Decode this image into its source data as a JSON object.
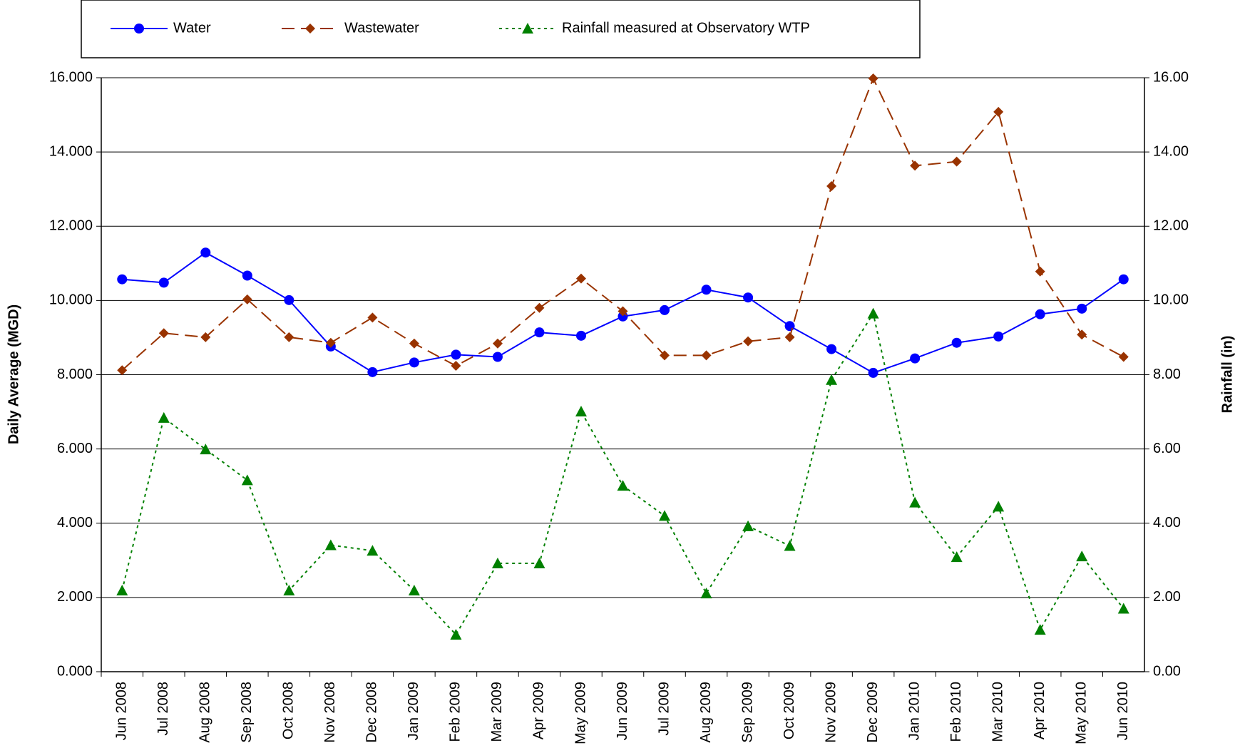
{
  "chart_data": {
    "type": "line",
    "y_label": "Daily Average (MGD)",
    "y2_label": "Rainfall (in)",
    "categories": [
      "Jun 2008",
      "Jul 2008",
      "Aug 2008",
      "Sep 2008",
      "Oct 2008",
      "Nov 2008",
      "Dec 2008",
      "Jan 2009",
      "Feb 2009",
      "Mar 2009",
      "Apr 2009",
      "May 2009",
      "Jun 2009",
      "Jul 2009",
      "Aug 2009",
      "Sep 2009",
      "Oct 2009",
      "Nov 2009",
      "Dec 2009",
      "Jan 2010",
      "Feb 2010",
      "Mar 2010",
      "Apr 2010",
      "May 2010",
      "Jun 2010"
    ],
    "series": [
      {
        "name": "Water",
        "color": "#0000ff",
        "dash": "solid",
        "marker": "circle",
        "values": [
          10.57,
          10.48,
          11.29,
          10.67,
          10.01,
          8.76,
          8.07,
          8.33,
          8.54,
          8.48,
          9.14,
          9.05,
          9.57,
          9.74,
          10.29,
          10.08,
          9.31,
          8.69,
          8.05,
          8.44,
          8.86,
          9.03,
          9.63,
          9.78,
          10.57
        ]
      },
      {
        "name": "Wastewater",
        "color": "#993300",
        "dash": "dashed",
        "marker": "diamond",
        "values": [
          8.12,
          9.12,
          9.01,
          10.03,
          9.01,
          8.86,
          9.54,
          8.84,
          8.24,
          8.84,
          9.8,
          10.59,
          9.71,
          8.52,
          8.52,
          8.9,
          9.01,
          13.08,
          15.98,
          13.63,
          13.74,
          15.08,
          10.78,
          9.08,
          8.48
        ]
      },
      {
        "name": "Rainfall measured at Observatory WTP",
        "color": "#008000",
        "dash": "dotted",
        "marker": "triangle",
        "axis": "y2",
        "values": [
          2.19,
          6.84,
          5.99,
          5.16,
          2.19,
          3.41,
          3.26,
          2.19,
          1.0,
          2.92,
          2.92,
          7.01,
          5.01,
          4.2,
          2.11,
          3.92,
          3.39,
          7.86,
          9.65,
          4.56,
          3.09,
          4.45,
          1.13,
          3.11,
          1.7
        ]
      }
    ],
    "ylim": [
      0,
      16
    ],
    "yticks": [
      {
        "value": 0,
        "label": "0.000"
      },
      {
        "value": 2,
        "label": "2.000"
      },
      {
        "value": 4,
        "label": "4.000"
      },
      {
        "value": 6,
        "label": "6.000"
      },
      {
        "value": 8,
        "label": "8.000"
      },
      {
        "value": 10,
        "label": "10.000"
      },
      {
        "value": 12,
        "label": "12.000"
      },
      {
        "value": 14,
        "label": "14.000"
      },
      {
        "value": 16,
        "label": "16.000"
      }
    ],
    "y2lim": [
      0,
      16
    ],
    "y2ticks": [
      {
        "value": 0,
        "label": "0.00"
      },
      {
        "value": 2,
        "label": "2.00"
      },
      {
        "value": 4,
        "label": "4.00"
      },
      {
        "value": 6,
        "label": "6.00"
      },
      {
        "value": 8,
        "label": "8.00"
      },
      {
        "value": 10,
        "label": "10.00"
      },
      {
        "value": 12,
        "label": "12.00"
      },
      {
        "value": 14,
        "label": "14.00"
      },
      {
        "value": 16,
        "label": "16.00"
      }
    ],
    "grid": true,
    "legend": "top"
  }
}
